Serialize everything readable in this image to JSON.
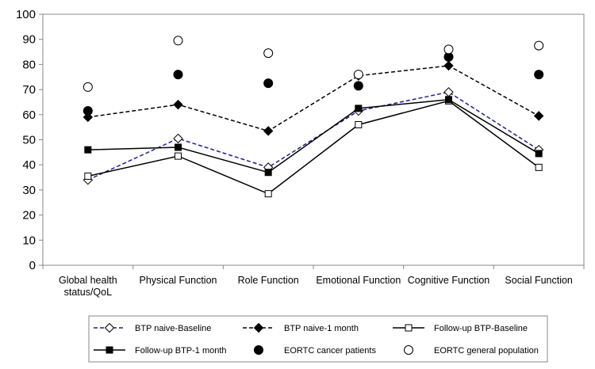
{
  "chart_data": {
    "type": "line",
    "categories": [
      [
        "Global health",
        "status/QoL"
      ],
      [
        "Physical Function"
      ],
      [
        "Role Function"
      ],
      [
        "Emotional Function"
      ],
      [
        "Cognitive Function"
      ],
      [
        "Social Function"
      ]
    ],
    "ylim": [
      0,
      100
    ],
    "yticks": [
      0,
      10,
      20,
      30,
      40,
      50,
      60,
      70,
      80,
      90,
      100
    ],
    "grid": false,
    "legend_position": "bottom",
    "series": [
      {
        "name": "BTP naive-Baseline",
        "values": [
          34,
          50.5,
          39,
          61.5,
          69,
          46
        ],
        "line": "dashed",
        "color": "#1f1f8f",
        "marker": "open-diamond"
      },
      {
        "name": "BTP naive-1 month",
        "values": [
          59,
          64,
          53.5,
          75.5,
          79.5,
          59.5
        ],
        "line": "dashed",
        "color": "#000000",
        "marker": "filled-diamond"
      },
      {
        "name": "Follow-up BTP-Baseline",
        "values": [
          35.5,
          43.5,
          28.5,
          56,
          65.5,
          39
        ],
        "line": "solid",
        "color": "#000000",
        "marker": "open-square"
      },
      {
        "name": "Follow-up BTP-1 month",
        "values": [
          46,
          47,
          37,
          62.5,
          66,
          44.5
        ],
        "line": "solid",
        "color": "#000000",
        "marker": "filled-square"
      },
      {
        "name": "EORTC cancer patients",
        "values": [
          61.5,
          76,
          72.5,
          71.5,
          83,
          76
        ],
        "line": "none",
        "color": "#000000",
        "marker": "filled-circle"
      },
      {
        "name": "EORTC general population",
        "values": [
          71,
          89.5,
          84.5,
          76,
          86,
          87.5
        ],
        "line": "none",
        "color": "#000000",
        "marker": "open-circle"
      }
    ]
  }
}
